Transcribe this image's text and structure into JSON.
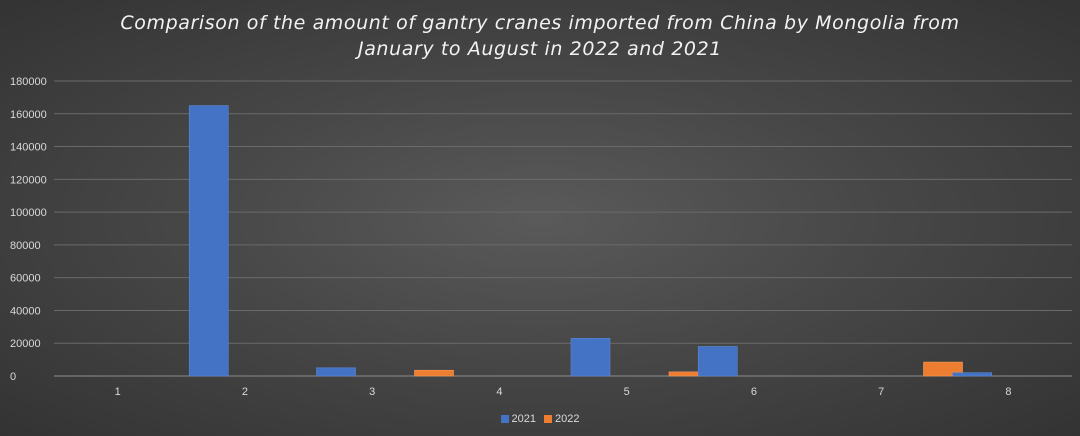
{
  "chart_data": {
    "type": "bar",
    "title_lines": [
      "Comparison of the amount of gantry cranes imported from China by Mongolia from",
      "January to August in 2022 and 2021"
    ],
    "categories": [
      "1",
      "2",
      "3",
      "4",
      "5",
      "6",
      "7",
      "8"
    ],
    "series": [
      {
        "name": "2021",
        "color": "#4472c4",
        "values": [
          0,
          165000,
          5000,
          0,
          23000,
          18000,
          0,
          2000
        ]
      },
      {
        "name": "2022",
        "color": "#ed7d31",
        "values": [
          0,
          0,
          3500,
          0,
          2500,
          0,
          8500,
          0
        ]
      }
    ],
    "y_ticks": [
      "0",
      "20000",
      "40000",
      "60000",
      "80000",
      "100000",
      "120000",
      "140000",
      "160000",
      "180000"
    ],
    "ylim": [
      0,
      180000
    ],
    "grid": true,
    "legend_position": "bottom"
  }
}
